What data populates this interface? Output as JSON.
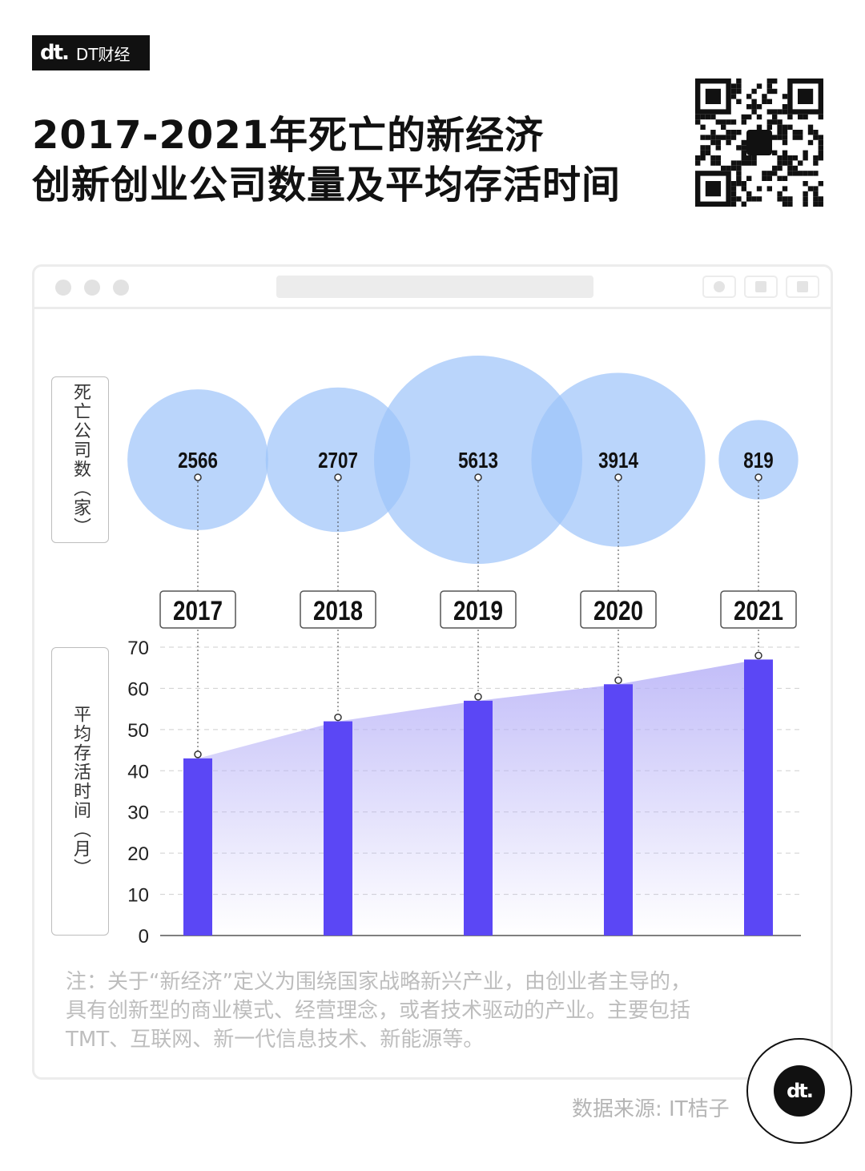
{
  "brand": {
    "logo_text": "dt.",
    "name": "DT财经"
  },
  "title": {
    "line1": "2017-2021年死亡的新经济",
    "line2": "创新创业公司数量及平均存活时间"
  },
  "axis_labels": {
    "top": "死亡公司数（家）",
    "bottom": "平均存活时间（月）"
  },
  "chart_data": {
    "type": "bar",
    "categories": [
      "2017",
      "2018",
      "2019",
      "2020",
      "2021"
    ],
    "bubbles": {
      "name": "死亡公司数（家）",
      "values": [
        2566,
        2707,
        5613,
        3914,
        819
      ]
    },
    "series": [
      {
        "name": "平均存活时间（月）",
        "values": [
          43,
          52,
          57,
          61,
          67
        ]
      }
    ],
    "ylabel": "平均存活时间（月）",
    "ylim": [
      0,
      70
    ],
    "yticks": [
      0,
      10,
      20,
      30,
      40,
      50,
      60,
      70
    ],
    "grid": true,
    "colors": {
      "bar": "#5b47f5",
      "bubble": "#9cc3fa",
      "area": "#b7b1f7"
    }
  },
  "note": "注：关于“新经济”定义为围绕国家战略新兴产业，由创业者主导的，具有创新型的商业模式、经营理念，或者技术驱动的产业。主要包括TMT、互联网、新一代信息技术、新能源等。",
  "source": "数据来源: IT桔子",
  "badge_text": "dt."
}
